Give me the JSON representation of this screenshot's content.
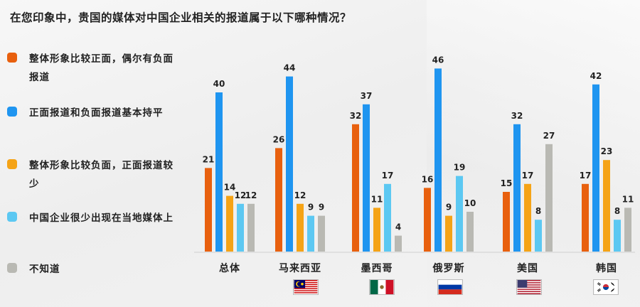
{
  "title": "在您印象中，贵国的媒体对中国企业相关的报道属于以下哪种情况？",
  "legend": [
    {
      "label": "整体形象比较正面，偶尔有负面报道",
      "color": "#e8600e"
    },
    {
      "label": "正面报道和负面报道基本持平",
      "color": "#1f95f0"
    },
    {
      "label": "整体形象比较负面，正面报道较少",
      "color": "#f5a316"
    },
    {
      "label": "中国企业很少出现在当地媒体上",
      "color": "#5cc8f2"
    },
    {
      "label": "不知道",
      "color": "#b9b9b3"
    }
  ],
  "flags": [
    "malaysia-flag",
    "mexico-flag",
    "russia-flag",
    "usa-flag",
    "korea-flag"
  ],
  "chart_data": {
    "type": "bar",
    "categories": [
      "总体",
      "马来西亚",
      "墨西哥",
      "俄罗斯",
      "美国",
      "韩国"
    ],
    "series": [
      {
        "name": "整体形象比较正面，偶尔有负面报道",
        "values": [
          21,
          26,
          32,
          16,
          15,
          17
        ]
      },
      {
        "name": "正面报道和负面报道基本持平",
        "values": [
          40,
          44,
          37,
          46,
          32,
          42
        ]
      },
      {
        "name": "整体形象比较负面，正面报道较少",
        "values": [
          14,
          12,
          11,
          9,
          17,
          23
        ]
      },
      {
        "name": "中国企业很少出现在当地媒体上",
        "values": [
          12,
          9,
          17,
          19,
          8,
          8
        ]
      },
      {
        "name": "不知道",
        "values": [
          12,
          9,
          4,
          10,
          27,
          11
        ]
      }
    ],
    "ylim": [
      0,
      50
    ],
    "grid": false,
    "legend_position": "left"
  }
}
